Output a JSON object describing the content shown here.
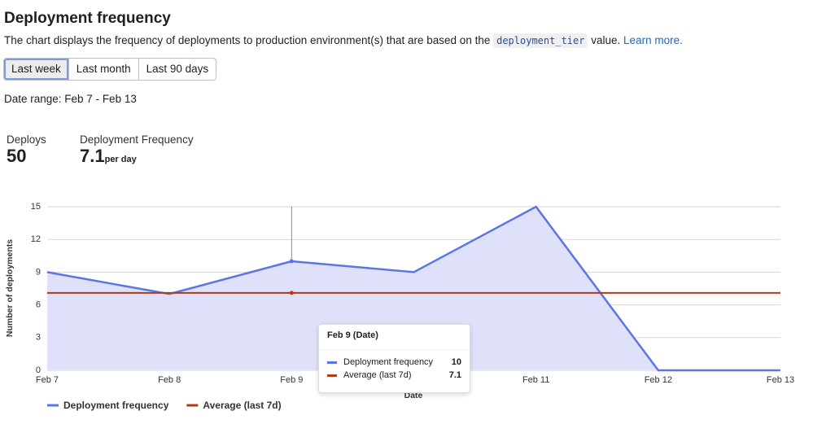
{
  "header": {
    "title": "Deployment frequency",
    "description": [
      "The chart displays the frequency of deployments to production environment(s) that are based on the",
      "deployment_tier",
      "value.",
      "Learn more."
    ]
  },
  "buttons": [
    "Last week",
    "Last month",
    "Last 90 days"
  ],
  "date_range": "Date range: Feb 7 - Feb 13",
  "stats": [
    {
      "label": "Deploys",
      "value": "50"
    },
    {
      "label": "Deployment Frequency",
      "value": "7.1",
      "unit": "per day"
    }
  ],
  "chart_data": {
    "type": "line",
    "area": true,
    "grid": true,
    "categories": [
      "Feb 7",
      "Feb 8",
      "Feb 9",
      null,
      "Feb 11",
      "Feb 12",
      "Feb 13"
    ],
    "series": [
      {
        "name": "Deployment frequency",
        "color": "#5b75e6",
        "fill": "#dfe1fb",
        "values": [
          9,
          7,
          10,
          9,
          15,
          0,
          0
        ]
      },
      {
        "name": "Average (last 7d)",
        "color": "#b23a16",
        "values": [
          7.1,
          7.1,
          7.1,
          7.1,
          7.1,
          7.1,
          7.1
        ]
      }
    ],
    "ylim": [
      0,
      15
    ],
    "yticks": [
      0,
      3,
      6,
      9,
      12,
      15
    ],
    "ylabel": "Number of deployments",
    "xlabel": "Date",
    "tooltip_title": "Feb 9 (Date)"
  }
}
